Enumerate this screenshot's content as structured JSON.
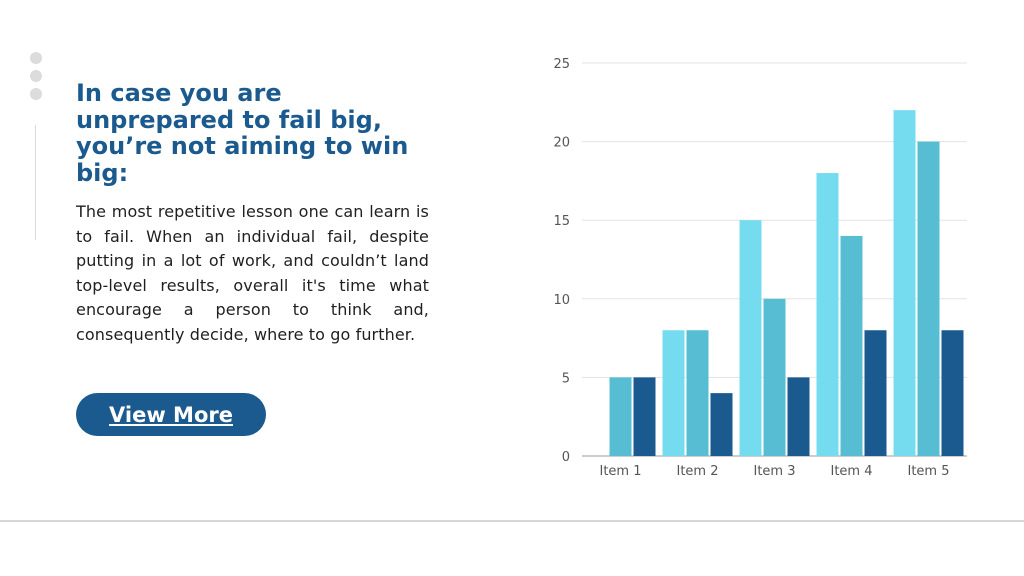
{
  "headline": "In case you are unprepared to fail big, you’re not aiming to win big:",
  "body": "The most repetitive lesson one can learn is to fail. When an individual fail, despite putting in a lot of work, and couldn’t land top-level results, overall it's time what encourage a person to think and, consequently decide, where to go further.",
  "button_label": "View More",
  "colors": {
    "accent": "#1b5a8e",
    "series": [
      "#75dcf0",
      "#56bdd3",
      "#1b5a8e"
    ]
  },
  "chart_data": {
    "type": "bar",
    "categories": [
      "Item 1",
      "Item 2",
      "Item 3",
      "Item 4",
      "Item 5"
    ],
    "series": [
      {
        "values": [
          0,
          8,
          15,
          18,
          22
        ]
      },
      {
        "values": [
          5,
          8,
          10,
          14,
          20
        ]
      },
      {
        "values": [
          5,
          4,
          5,
          8,
          8
        ]
      }
    ],
    "ylim": [
      0,
      25
    ],
    "yticks": [
      0,
      5,
      10,
      15,
      20,
      25
    ],
    "grid": true,
    "legend": "none"
  }
}
